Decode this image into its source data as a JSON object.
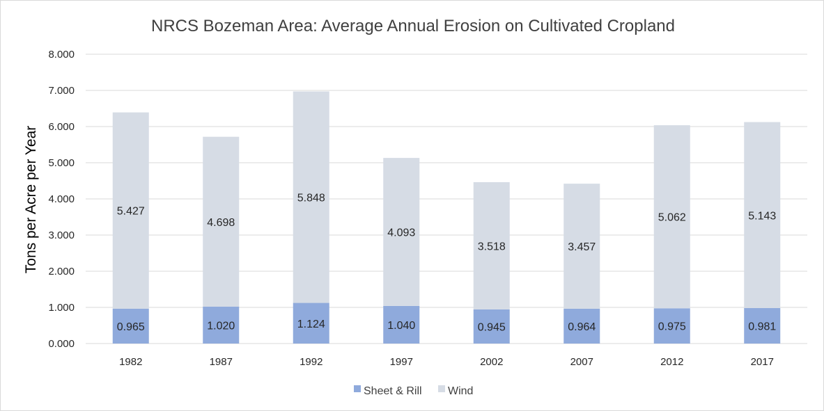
{
  "chart_data": {
    "type": "bar",
    "stacked": true,
    "title": "NRCS Bozeman Area: Average Annual Erosion on Cultivated Cropland",
    "xlabel": "",
    "ylabel": "Tons per Acre per Year",
    "categories": [
      "1982",
      "1987",
      "1992",
      "1997",
      "2002",
      "2007",
      "2012",
      "2017"
    ],
    "series": [
      {
        "name": "Sheet & Rill",
        "color": "#8faadc",
        "values": [
          0.965,
          1.02,
          1.124,
          1.04,
          0.945,
          0.964,
          0.975,
          0.981
        ],
        "labels": [
          "0.965",
          "1.020",
          "1.124",
          "1.040",
          "0.945",
          "0.964",
          "0.975",
          "0.981"
        ]
      },
      {
        "name": "Wind",
        "color": "#d6dce5",
        "values": [
          5.427,
          4.698,
          5.848,
          4.093,
          3.518,
          3.457,
          5.062,
          5.143
        ],
        "labels": [
          "5.427",
          "4.698",
          "5.848",
          "4.093",
          "3.518",
          "3.457",
          "5.062",
          "5.143"
        ]
      }
    ],
    "ylim": [
      0,
      8
    ],
    "yticks": [
      "0.000",
      "1.000",
      "2.000",
      "3.000",
      "4.000",
      "5.000",
      "6.000",
      "7.000",
      "8.000"
    ],
    "grid": true,
    "legend": "bottom"
  }
}
